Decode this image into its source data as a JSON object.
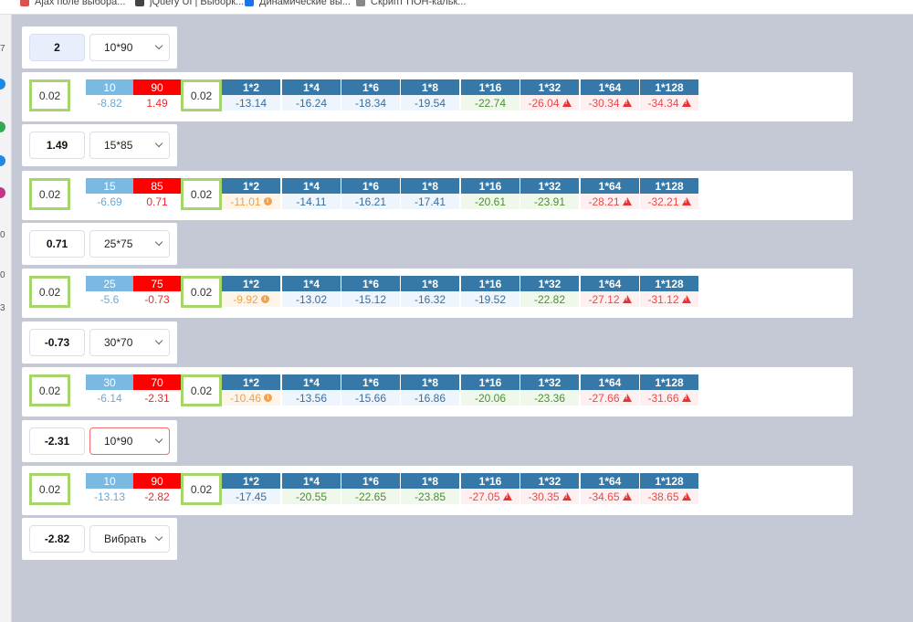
{
  "bookmarks": [
    {
      "label": "Ajax поле выбора...",
      "color": "#d9534f"
    },
    {
      "label": "jQuery UI | Выборк...",
      "color": "#444444"
    },
    {
      "label": "Динамические вы...",
      "color": "#1a73e8"
    },
    {
      "label": "Скрипт ПОН-кальк...",
      "color": "#888888"
    }
  ],
  "side_numbers": [
    "7",
    "0",
    "0",
    "3"
  ],
  "blocks": [
    {
      "value": "2",
      "select": "10*90",
      "result": {
        "left": "0.02",
        "right": "0.02",
        "a_head": "10",
        "a_val": "-8.82",
        "b_head": "90",
        "b_val": "1.49",
        "cells": [
          {
            "head": "1*2",
            "val": "-13.14",
            "cls": "b"
          },
          {
            "head": "1*4",
            "val": "-16.24",
            "cls": "b"
          },
          {
            "head": "1*6",
            "val": "-18.34",
            "cls": "b"
          },
          {
            "head": "1*8",
            "val": "-19.54",
            "cls": "b"
          },
          {
            "head": "1*16",
            "val": "-22.74",
            "cls": "g"
          },
          {
            "head": "1*32",
            "val": "-26.04",
            "cls": "r",
            "icon": "warn"
          },
          {
            "head": "1*64",
            "val": "-30.34",
            "cls": "r",
            "icon": "warn"
          },
          {
            "head": "1*128",
            "val": "-34.34",
            "cls": "r",
            "icon": "warn"
          }
        ]
      }
    },
    {
      "value": "1.49",
      "select": "15*85",
      "result": {
        "left": "0.02",
        "right": "0.02",
        "a_head": "15",
        "a_val": "-6.69",
        "b_head": "85",
        "b_val": "0.71",
        "cells": [
          {
            "head": "1*2",
            "val": "-11.01",
            "cls": "o",
            "icon": "info"
          },
          {
            "head": "1*4",
            "val": "-14.11",
            "cls": "b"
          },
          {
            "head": "1*6",
            "val": "-16.21",
            "cls": "b"
          },
          {
            "head": "1*8",
            "val": "-17.41",
            "cls": "b"
          },
          {
            "head": "1*16",
            "val": "-20.61",
            "cls": "g"
          },
          {
            "head": "1*32",
            "val": "-23.91",
            "cls": "g"
          },
          {
            "head": "1*64",
            "val": "-28.21",
            "cls": "r",
            "icon": "warn"
          },
          {
            "head": "1*128",
            "val": "-32.21",
            "cls": "r",
            "icon": "warn"
          }
        ]
      }
    },
    {
      "value": "0.71",
      "select": "25*75",
      "result": {
        "left": "0.02",
        "right": "0.02",
        "a_head": "25",
        "a_val": "-5.6",
        "b_head": "75",
        "b_val": "-0.73",
        "cells": [
          {
            "head": "1*2",
            "val": "-9.92",
            "cls": "o",
            "icon": "info"
          },
          {
            "head": "1*4",
            "val": "-13.02",
            "cls": "b"
          },
          {
            "head": "1*6",
            "val": "-15.12",
            "cls": "b"
          },
          {
            "head": "1*8",
            "val": "-16.32",
            "cls": "b"
          },
          {
            "head": "1*16",
            "val": "-19.52",
            "cls": "b"
          },
          {
            "head": "1*32",
            "val": "-22.82",
            "cls": "g"
          },
          {
            "head": "1*64",
            "val": "-27.12",
            "cls": "r",
            "icon": "warn"
          },
          {
            "head": "1*128",
            "val": "-31.12",
            "cls": "r",
            "icon": "warn"
          }
        ]
      }
    },
    {
      "value": "-0.73",
      "select": "30*70",
      "result": {
        "left": "0.02",
        "right": "0.02",
        "a_head": "30",
        "a_val": "-6.14",
        "b_head": "70",
        "b_val": "-2.31",
        "cells": [
          {
            "head": "1*2",
            "val": "-10.46",
            "cls": "o",
            "icon": "info"
          },
          {
            "head": "1*4",
            "val": "-13.56",
            "cls": "b"
          },
          {
            "head": "1*6",
            "val": "-15.66",
            "cls": "b"
          },
          {
            "head": "1*8",
            "val": "-16.86",
            "cls": "b"
          },
          {
            "head": "1*16",
            "val": "-20.06",
            "cls": "g"
          },
          {
            "head": "1*32",
            "val": "-23.36",
            "cls": "g"
          },
          {
            "head": "1*64",
            "val": "-27.66",
            "cls": "r",
            "icon": "warn"
          },
          {
            "head": "1*128",
            "val": "-31.66",
            "cls": "r",
            "icon": "warn"
          }
        ]
      }
    },
    {
      "value": "-2.31",
      "select": "10*90",
      "select_error": true,
      "result": {
        "left": "0.02",
        "right": "0.02",
        "a_head": "10",
        "a_val": "-13.13",
        "b_head": "90",
        "b_val": "-2.82",
        "cells": [
          {
            "head": "1*2",
            "val": "-17.45",
            "cls": "b"
          },
          {
            "head": "1*4",
            "val": "-20.55",
            "cls": "g"
          },
          {
            "head": "1*6",
            "val": "-22.65",
            "cls": "g"
          },
          {
            "head": "1*8",
            "val": "-23.85",
            "cls": "g"
          },
          {
            "head": "1*16",
            "val": "-27.05",
            "cls": "r",
            "icon": "warn"
          },
          {
            "head": "1*32",
            "val": "-30.35",
            "cls": "r",
            "icon": "warn"
          },
          {
            "head": "1*64",
            "val": "-34.65",
            "cls": "r",
            "icon": "warn"
          },
          {
            "head": "1*128",
            "val": "-38.65",
            "cls": "r",
            "icon": "warn"
          }
        ]
      }
    },
    {
      "value": "-2.82",
      "select": "Вибрать"
    }
  ],
  "colors": {
    "background": "#c5c9d6",
    "header_blue": "#3679a8",
    "green_border": "#a5d56b",
    "red_head": "#ff0000",
    "light_blue_head": "#7ab9e2",
    "warning": "#e83333",
    "info": "#f0a14b"
  }
}
